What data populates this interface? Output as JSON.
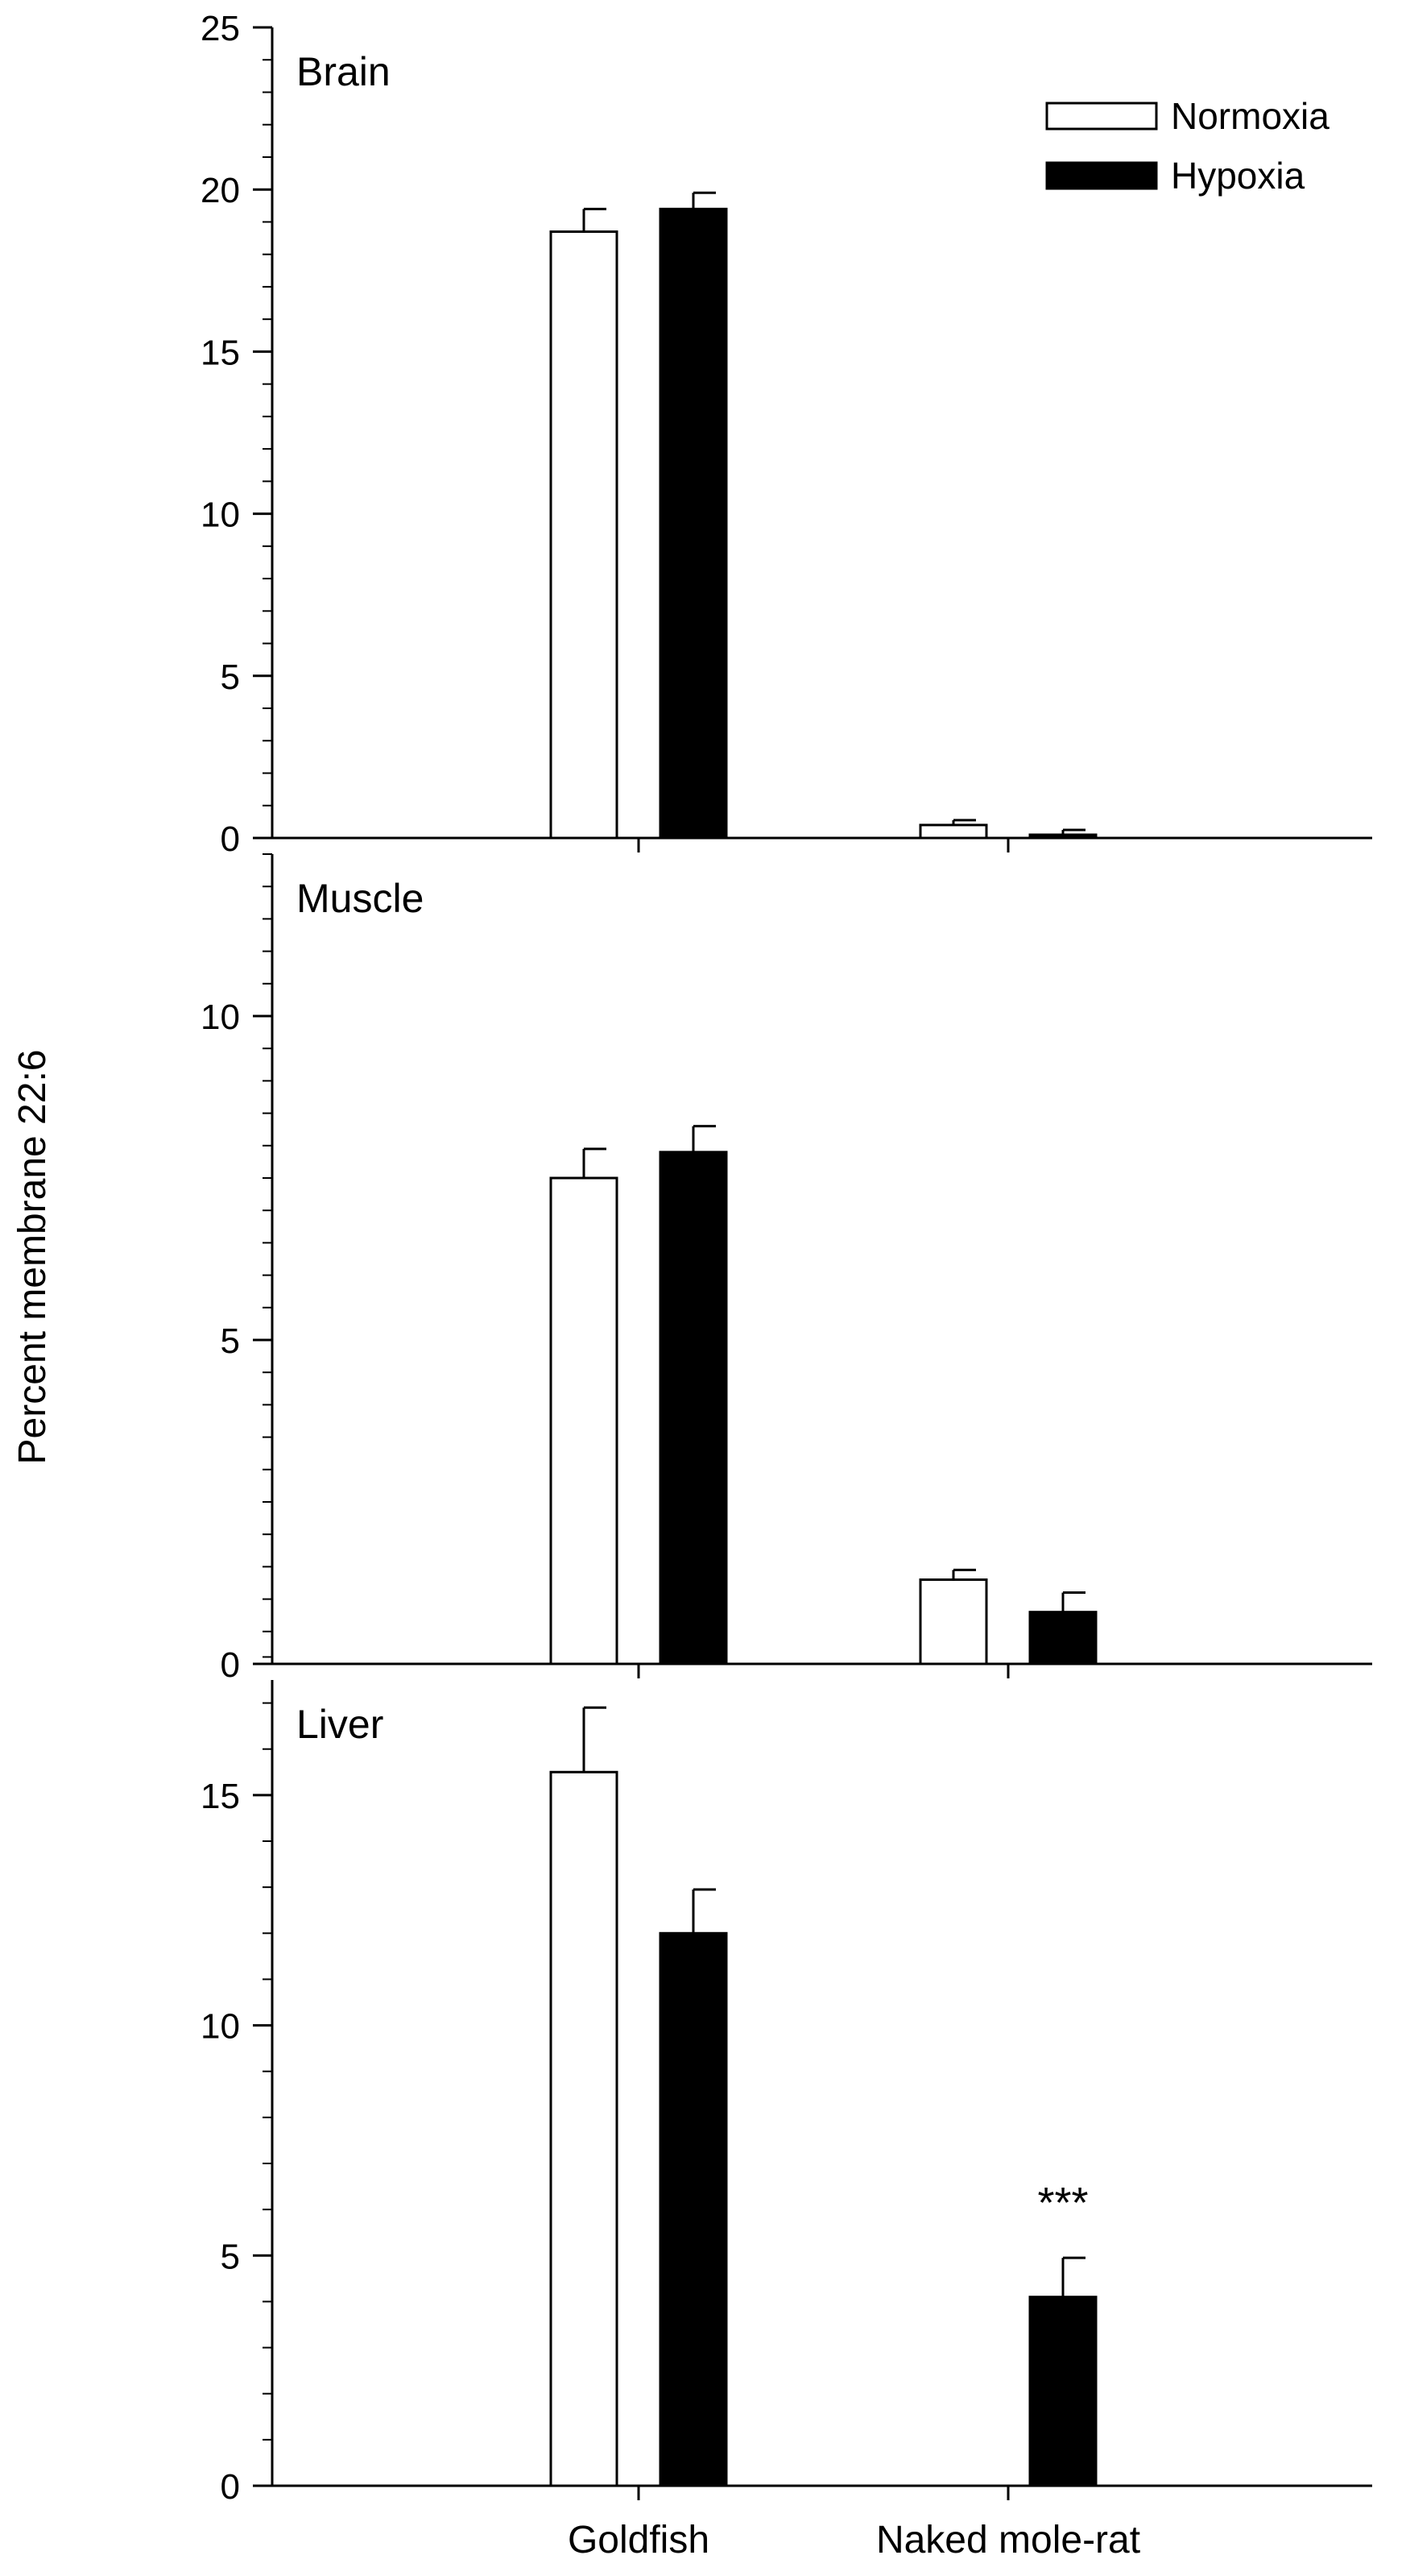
{
  "ylabel": "Percent membrane 22:6",
  "categories": [
    "Goldfish",
    "Naked mole-rat"
  ],
  "legend": [
    {
      "name": "Normoxia",
      "fill": "#ffffff",
      "stroke": "#000000"
    },
    {
      "name": "Hypoxia",
      "fill": "#000000",
      "stroke": "#000000"
    }
  ],
  "chart_data": [
    {
      "type": "bar",
      "title": "Brain",
      "ylabel": "Percent membrane 22:6",
      "categories": [
        "Goldfish",
        "Naked mole-rat"
      ],
      "ylim": [
        0,
        25
      ],
      "yticks": [
        0,
        5,
        10,
        15,
        20,
        25
      ],
      "minor_step": 1,
      "legend_position": "top-right",
      "series": [
        {
          "name": "Normoxia",
          "values": [
            18.7,
            0.4
          ],
          "errors": [
            0.7,
            0.15
          ]
        },
        {
          "name": "Hypoxia",
          "values": [
            19.4,
            0.1
          ],
          "errors": [
            0.5,
            0.15
          ]
        }
      ],
      "annotations": [
        [
          null,
          null
        ],
        [
          null,
          null
        ]
      ]
    },
    {
      "type": "bar",
      "title": "Muscle",
      "ylabel": "Percent membrane 22:6",
      "categories": [
        "Goldfish",
        "Naked mole-rat"
      ],
      "ylim": [
        0,
        12.5
      ],
      "yticks": [
        0,
        5,
        10
      ],
      "minor_step": 0.5,
      "series": [
        {
          "name": "Normoxia",
          "values": [
            7.5,
            1.3
          ],
          "errors": [
            0.45,
            0.15
          ]
        },
        {
          "name": "Hypoxia",
          "values": [
            7.9,
            0.8
          ],
          "errors": [
            0.4,
            0.3
          ]
        }
      ],
      "annotations": [
        [
          null,
          null
        ],
        [
          null,
          null
        ]
      ]
    },
    {
      "type": "bar",
      "title": "Liver",
      "ylabel": "Percent membrane 22:6",
      "categories": [
        "Goldfish",
        "Naked mole-rat"
      ],
      "ylim": [
        0,
        17.5
      ],
      "yticks": [
        0,
        5,
        10,
        15
      ],
      "minor_step": 1,
      "series": [
        {
          "name": "Normoxia",
          "values": [
            15.5,
            0
          ],
          "errors": [
            1.4,
            0
          ]
        },
        {
          "name": "Hypoxia",
          "values": [
            12.0,
            4.1
          ],
          "errors": [
            0.95,
            0.85
          ]
        }
      ],
      "annotations": [
        [
          null,
          "*"
        ],
        [
          null,
          "***"
        ]
      ]
    }
  ]
}
